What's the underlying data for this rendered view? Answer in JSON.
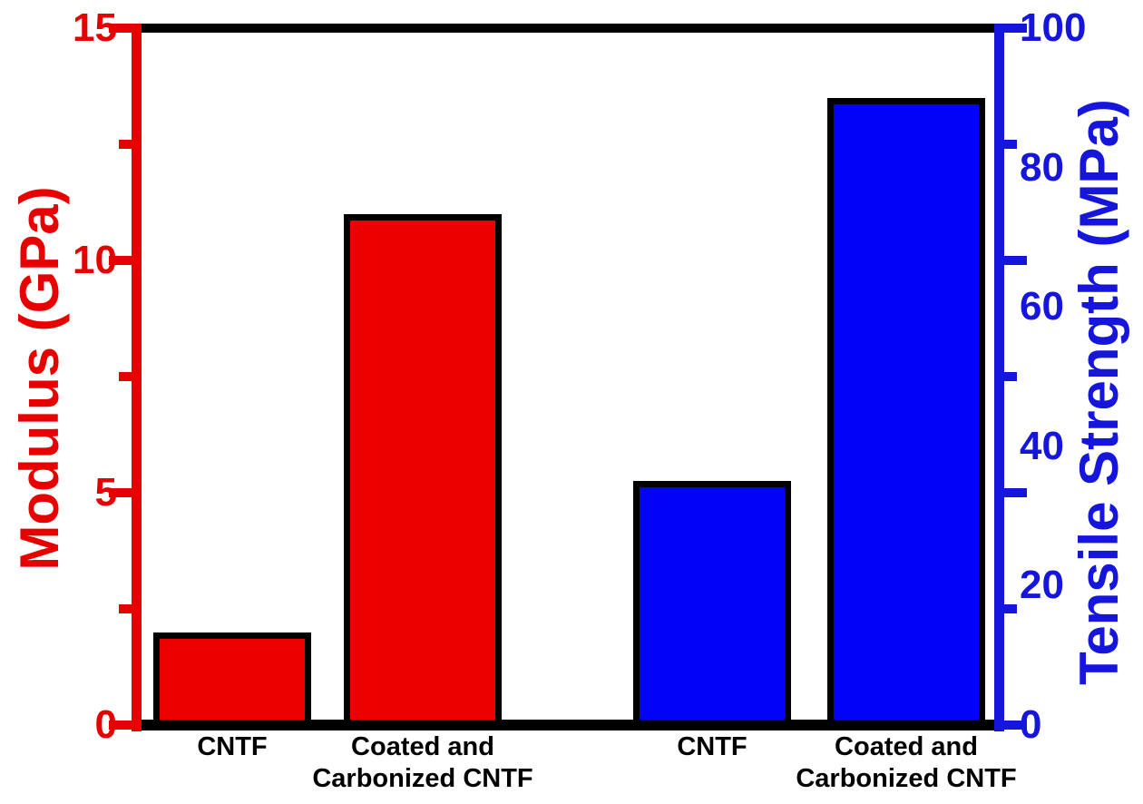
{
  "figure": {
    "background": "#ffffff",
    "black": "#000000"
  },
  "chart_data": {
    "type": "bar",
    "title": "",
    "dual_y_axes": true,
    "grid": false,
    "legend": false,
    "left_axis": {
      "label": "Modulus (GPa)",
      "min": 0,
      "max": 15,
      "tick_labels": [
        0,
        5,
        10,
        15
      ],
      "minor_ticks": [
        2.5,
        7.5,
        12.5
      ],
      "color": "#e60000"
    },
    "right_axis": {
      "label": "Tensile Strength (MPa)",
      "min": 0,
      "max": 100,
      "tick_labels": [
        0,
        20,
        40,
        60,
        80,
        100
      ],
      "color": "#1515dc"
    },
    "categories": [
      "CNTF",
      "Coated and\nCarbonized CNTF",
      "CNTF",
      "Coated and\nCarbonized CNTF"
    ],
    "series": [
      {
        "name": "Modulus (GPa)",
        "axis": "left",
        "bar_color": "#ec0000",
        "values": [
          {
            "category": "CNTF",
            "value": 2.0
          },
          {
            "category": "Coated and\nCarbonized CNTF",
            "value": 11.0
          }
        ]
      },
      {
        "name": "Tensile Strength (MPa)",
        "axis": "right",
        "bar_color": "#0202f8",
        "values": [
          {
            "category": "CNTF",
            "value": 35
          },
          {
            "category": "Coated and\nCarbonized CNTF",
            "value": 90
          }
        ]
      }
    ]
  }
}
